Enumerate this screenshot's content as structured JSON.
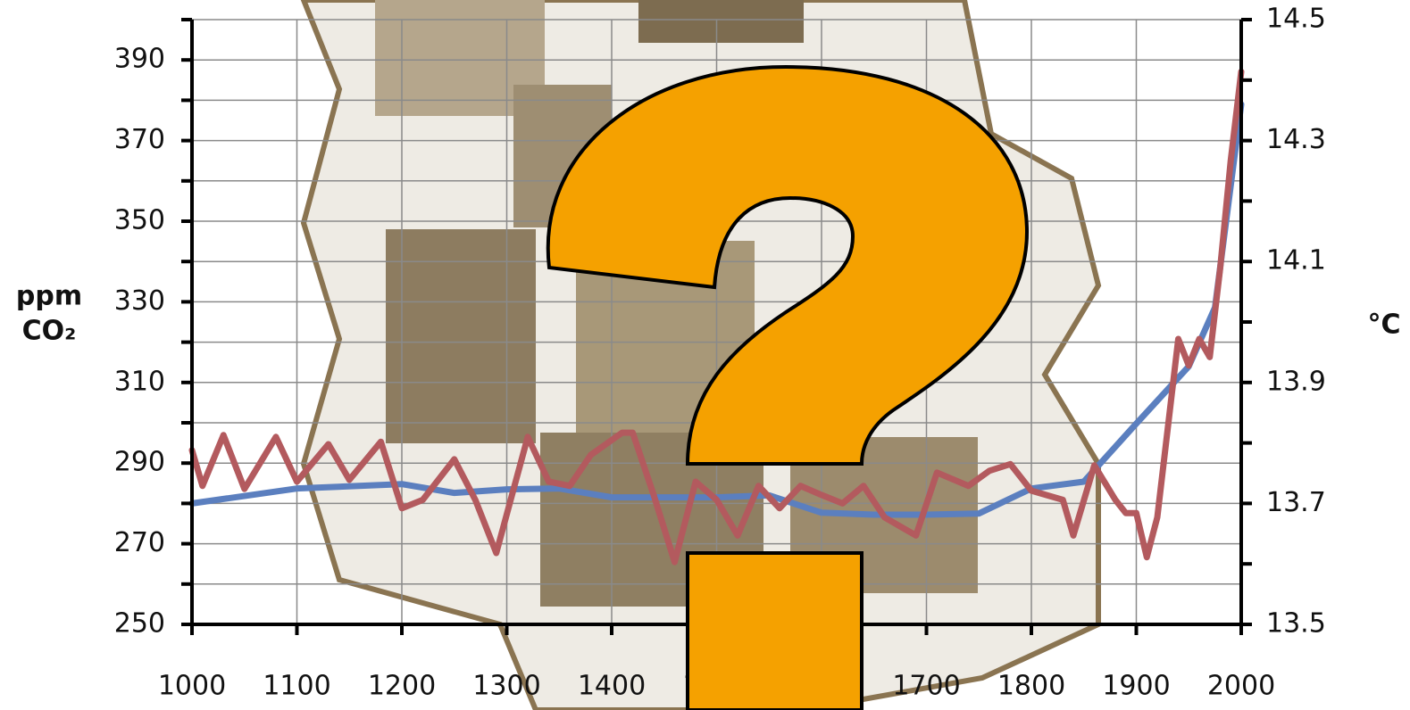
{
  "chart_data": {
    "type": "line",
    "y_axis_label": [
      "ppm",
      "CO₂"
    ],
    "y2_axis_label": "°C",
    "x": [
      1000,
      1100,
      1200,
      1250,
      1300,
      1350,
      1400,
      1500,
      1550,
      1600,
      1650,
      1700,
      1750,
      1800,
      1850,
      1900,
      1950,
      1975,
      2000
    ],
    "series": [
      {
        "color": "#5b7fbf",
        "values": [
          280,
          283.7,
          284.8,
          282.6,
          283.5,
          283.7,
          281.5,
          281.5,
          282,
          277.7,
          277.2,
          277.2,
          277.5,
          283.7,
          285.4,
          299.8,
          314,
          328.6,
          379
        ]
      },
      {
        "color": "#b35a5e",
        "axis": "y2",
        "x": [
          1000,
          1010,
          1030,
          1050,
          1080,
          1100,
          1130,
          1150,
          1180,
          1200,
          1220,
          1250,
          1270,
          1290,
          1320,
          1340,
          1360,
          1380,
          1410,
          1420,
          1440,
          1460,
          1480,
          1500,
          1520,
          1540,
          1560,
          1580,
          1600,
          1620,
          1640,
          1660,
          1690,
          1710,
          1740,
          1760,
          1780,
          1800,
          1830,
          1840,
          1860,
          1880,
          1890,
          1900,
          1910,
          1920,
          1940,
          1950,
          1960,
          1970,
          1980,
          1990,
          2000
        ],
        "values": [
          13.788,
          13.729,
          13.813,
          13.724,
          13.81,
          13.736,
          13.798,
          13.739,
          13.802,
          13.692,
          13.706,
          13.773,
          13.706,
          13.618,
          13.81,
          13.736,
          13.729,
          13.78,
          13.817,
          13.817,
          13.714,
          13.603,
          13.736,
          13.706,
          13.647,
          13.729,
          13.692,
          13.729,
          13.714,
          13.7,
          13.729,
          13.677,
          13.647,
          13.751,
          13.729,
          13.754,
          13.765,
          13.721,
          13.706,
          13.647,
          13.763,
          13.706,
          13.684,
          13.684,
          13.611,
          13.677,
          13.972,
          13.928,
          13.972,
          13.942,
          14.09,
          14.267,
          14.414
        ]
      }
    ],
    "xlim": [
      1000,
      2000
    ],
    "xticks": [
      1000,
      1100,
      1200,
      1300,
      1400,
      1500,
      1600,
      1700,
      1800,
      1900,
      2000
    ],
    "ylim": [
      250,
      400
    ],
    "yticks": [
      250,
      270,
      290,
      310,
      330,
      350,
      370,
      390
    ],
    "y_minor_ticks": [
      260,
      280,
      300,
      320,
      340,
      360,
      380,
      400
    ],
    "y2lim": [
      13.5,
      14.5
    ],
    "y2ticks": [
      13.5,
      13.7,
      13.9,
      14.1,
      14.3,
      14.5
    ],
    "y2_minor_ticks": [
      13.6,
      13.8,
      14.0,
      14.2,
      14.4
    ],
    "grid": true
  }
}
